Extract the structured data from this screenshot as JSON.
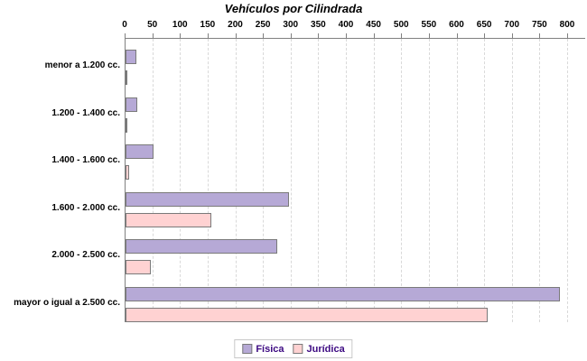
{
  "chart_data": {
    "type": "bar",
    "orientation": "horizontal",
    "title": "Vehículos por Cilindrada",
    "categories": [
      "menor a 1.200 cc.",
      "1.200 - 1.400 cc.",
      "1.400 - 1.600 cc.",
      "1.600 - 2.000 cc.",
      "2.000 - 2.500 cc.",
      "mayor o igual a 2.500 cc."
    ],
    "series": [
      {
        "name": "Física",
        "color": "#b6a9d6",
        "border_color": "#7a7a7a",
        "values": [
          20,
          22,
          50,
          295,
          275,
          785
        ]
      },
      {
        "name": "Jurídica",
        "color": "#ffd2d2",
        "border_color": "#7a7a7a",
        "values": [
          1,
          1,
          6,
          155,
          45,
          655
        ]
      }
    ],
    "x_axis": {
      "position": "top",
      "min": 0,
      "max": 800,
      "tick_step": 50,
      "ticks": [
        0,
        50,
        100,
        150,
        200,
        250,
        300,
        350,
        400,
        450,
        500,
        550,
        600,
        650,
        700,
        750,
        800
      ]
    },
    "grid": {
      "vertical_dashed": true,
      "color": "#d9d9d9"
    },
    "legend": {
      "position": "bottom",
      "border_color": "#c8c8c8",
      "text_color": "#3d0a82"
    },
    "colors": {
      "axis": "#808080",
      "text": "#000000",
      "background": "#ffffff"
    }
  }
}
